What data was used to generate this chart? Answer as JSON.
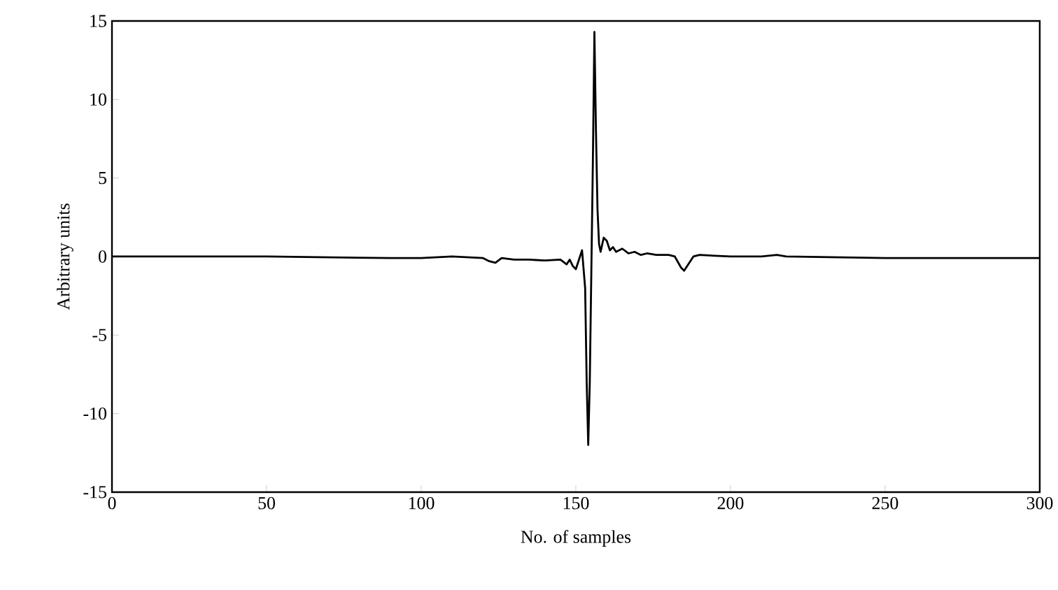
{
  "chart_data": {
    "type": "line",
    "xlabel": "No. of samples",
    "ylabel": "Arbitrary units",
    "xlim": [
      0,
      300
    ],
    "ylim": [
      -15,
      15
    ],
    "xticks": [
      0,
      50,
      100,
      150,
      200,
      250,
      300
    ],
    "yticks": [
      -15,
      -10,
      -5,
      0,
      5,
      10,
      15
    ],
    "grid": false,
    "marker": "none",
    "line_style": "solid",
    "series": [
      {
        "color": "#000000",
        "x": [
          0,
          20,
          50,
          90,
          100,
          110,
          120,
          122,
          124,
          126,
          130,
          135,
          140,
          145,
          147,
          148,
          149,
          150,
          151,
          152,
          153,
          153.5,
          154,
          154.5,
          155,
          155.5,
          156,
          156.5,
          157,
          157.5,
          158,
          159,
          160,
          161,
          162,
          163,
          165,
          167,
          169,
          171,
          173,
          176,
          180,
          182,
          184,
          185,
          186,
          188,
          190,
          200,
          210,
          215,
          218,
          250,
          300
        ],
        "values": [
          0,
          0,
          0,
          -0.1,
          -0.1,
          0,
          -0.1,
          -0.3,
          -0.4,
          -0.1,
          -0.2,
          -0.2,
          -0.25,
          -0.2,
          -0.5,
          -0.2,
          -0.6,
          -0.8,
          -0.2,
          0.4,
          -2,
          -8,
          -12,
          -8,
          -1,
          6,
          14.3,
          8,
          3,
          0.8,
          0.3,
          1.2,
          1.0,
          0.4,
          0.6,
          0.3,
          0.5,
          0.2,
          0.3,
          0.1,
          0.2,
          0.1,
          0.1,
          0,
          -0.7,
          -0.9,
          -0.6,
          0,
          0.1,
          0,
          0,
          0.1,
          0,
          -0.1,
          -0.1
        ]
      }
    ]
  }
}
